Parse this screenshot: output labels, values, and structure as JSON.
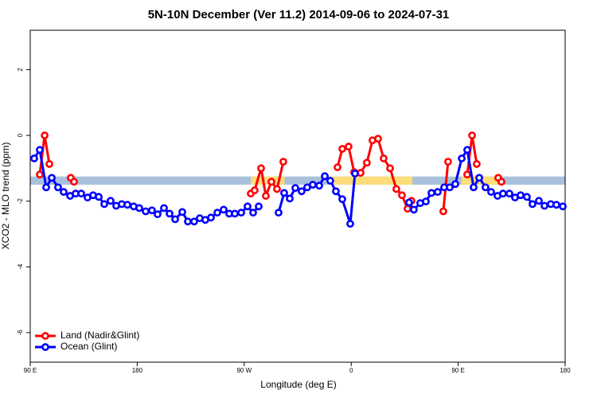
{
  "chart_data": {
    "type": "line",
    "title": "5N-10N December (Ver 11.2)   2014-09-06 to 2024-07-31",
    "xlabel": "Longitude (deg E)",
    "ylabel": "XCO2 - MLO trend (ppm)",
    "xlim": [
      90,
      540
    ],
    "xticks": [
      {
        "value": 90,
        "label": "90 E"
      },
      {
        "value": 180,
        "label": "180"
      },
      {
        "value": 270,
        "label": "90 W"
      },
      {
        "value": 360,
        "label": "0"
      },
      {
        "value": 450,
        "label": "90 E"
      },
      {
        "value": 540,
        "label": "180"
      }
    ],
    "ylim": [
      -6.9,
      3.2
    ],
    "yticks": [
      -6,
      -4,
      -2,
      0,
      2
    ],
    "legend": "lower left",
    "band": {
      "ylim": [
        -1.5,
        -1.25
      ],
      "color": "#a9c1dd",
      "highlight_color": "#fddc7a",
      "highlight_x": [
        [
          275.5,
          304
        ],
        [
          342.5,
          411.5
        ],
        [
          453,
          483
        ]
      ]
    },
    "series": [
      {
        "name": "Land (Nadir&Glint)",
        "color": "#ff0000",
        "x": [
          98.0,
          102.1,
          106.1,
          null,
          124.1,
          126.8,
          null,
          275.5,
          278.8,
          284.2,
          288.2,
          292.9,
          297.6,
          302.9,
          null,
          348.5,
          352.5,
          357.8,
          362.5,
          367.9,
          373.2,
          377.9,
          382.6,
          387.3,
          392.7,
          398.0,
          402.7,
          407.4,
          410.7,
          null,
          437.5,
          441.5,
          null,
          457.6,
          461.7,
          465.6,
          null,
          483.7,
          486.4
        ],
        "values": [
          -1.19,
          0,
          -0.87,
          null,
          -1.29,
          -1.41,
          null,
          -1.77,
          -1.67,
          -1.0,
          -1.84,
          -1.41,
          -1.63,
          -0.8,
          null,
          -0.97,
          -0.41,
          -0.34,
          -1.12,
          -1.14,
          -0.83,
          -0.15,
          -0.1,
          -0.7,
          -1.0,
          -1.63,
          -1.82,
          -2.23,
          -1.99,
          null,
          -2.31,
          -0.8,
          null,
          -1.19,
          0,
          -0.87,
          null,
          -1.29,
          -1.41
        ]
      },
      {
        "name": "Ocean (Glint)",
        "color": "#0000ff",
        "x": [
          93.3,
          98.0,
          103.4,
          108.1,
          113.4,
          118.1,
          123.5,
          128.2,
          132.9,
          138.2,
          142.9,
          147.6,
          152.3,
          157.6,
          162.3,
          167.0,
          171.7,
          177.0,
          181.7,
          187.1,
          192.4,
          197.1,
          202.5,
          207.2,
          211.9,
          217.9,
          222.6,
          227.9,
          232.6,
          237.3,
          242.0,
          247.4,
          252.7,
          257.4,
          262.1,
          267.5,
          272.8,
          277.5,
          282.2,
          null,
          298.9,
          303.6,
          308.3,
          313.0,
          318.3,
          323.0,
          327.7,
          333.1,
          337.8,
          342.4,
          347.1,
          352.5,
          359.2,
          363.2,
          null,
          408.7,
          412.7,
          418.1,
          422.8,
          427.5,
          432.8,
          438.2,
          442.9,
          447.6,
          453.0,
          457.6,
          463.0,
          467.7,
          473.0,
          477.7,
          483.1,
          487.7,
          493.1,
          497.8,
          502.5,
          507.8,
          512.5,
          517.9,
          522.6,
          527.9,
          532.6,
          538.0
        ],
        "values": [
          -0.7,
          -0.44,
          -1.58,
          -1.29,
          -1.58,
          -1.72,
          -1.84,
          -1.77,
          -1.77,
          -1.89,
          -1.82,
          -1.87,
          -2.09,
          -1.99,
          -2.14,
          -2.09,
          -2.11,
          -2.16,
          -2.21,
          -2.31,
          -2.28,
          -2.4,
          -2.21,
          -2.38,
          -2.55,
          -2.33,
          -2.62,
          -2.62,
          -2.52,
          -2.57,
          -2.5,
          -2.35,
          -2.26,
          -2.38,
          -2.38,
          -2.35,
          -2.16,
          -2.35,
          -2.16,
          null,
          -2.35,
          -1.75,
          -1.92,
          -1.6,
          -1.7,
          -1.58,
          -1.5,
          -1.53,
          -1.24,
          -1.38,
          -1.7,
          -1.94,
          -2.69,
          -1.16,
          null,
          -2.04,
          -2.26,
          -2.06,
          -2.01,
          -1.75,
          -1.72,
          -1.58,
          -1.58,
          -1.48,
          -0.7,
          -0.44,
          -1.58,
          -1.29,
          -1.58,
          -1.72,
          -1.84,
          -1.77,
          -1.77,
          -1.89,
          -1.82,
          -1.87,
          -2.09,
          -1.99,
          -2.14,
          -2.09,
          -2.11,
          -2.16
        ]
      }
    ]
  }
}
